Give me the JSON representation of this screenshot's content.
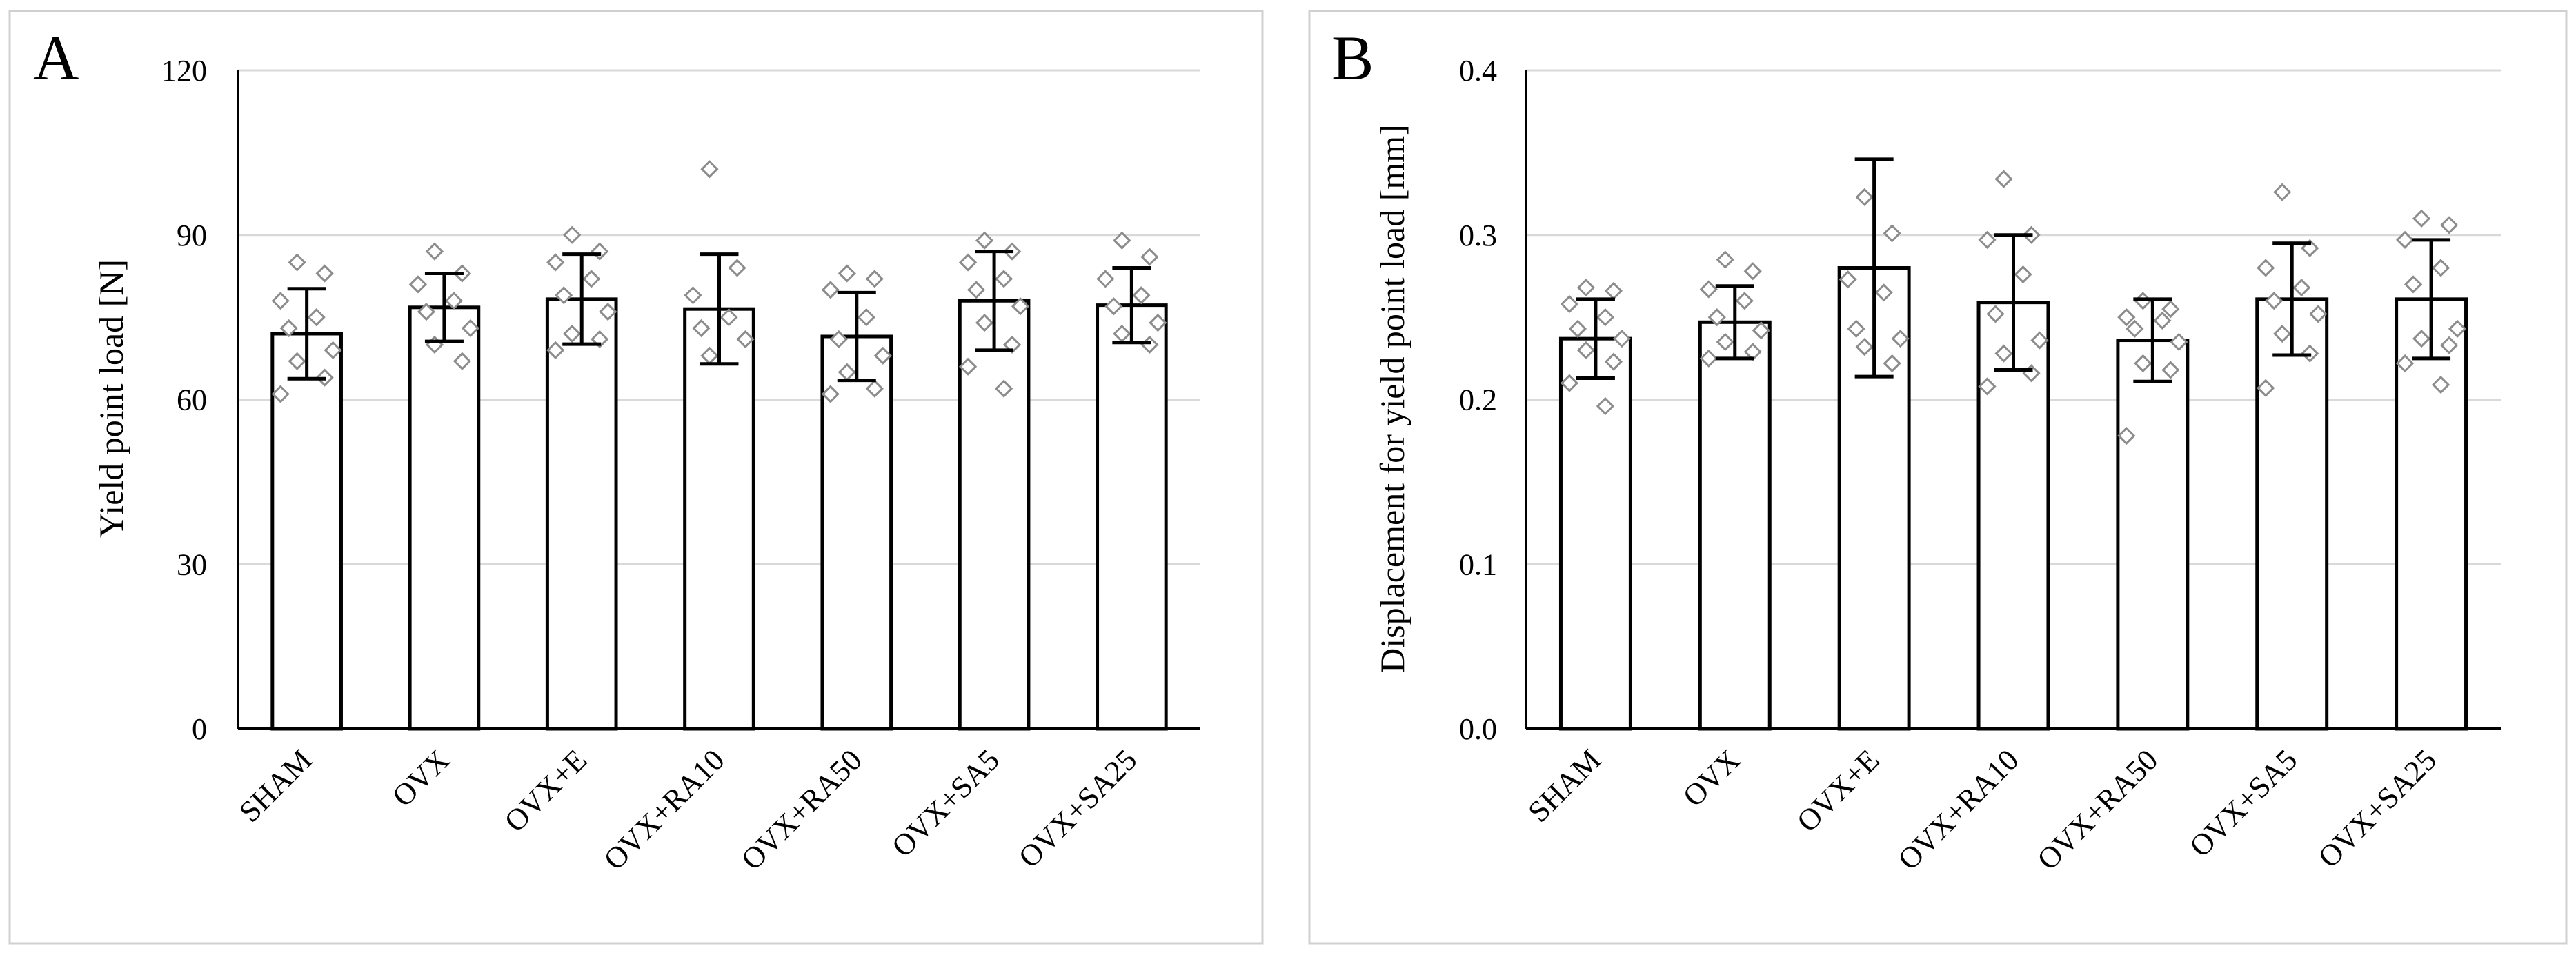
{
  "chart_data": [
    {
      "type": "bar",
      "panel_label": "A",
      "title": "",
      "xlabel": "",
      "ylabel": "Yield point load [N]",
      "ylim": [
        0,
        120
      ],
      "yticks": [
        0,
        30,
        60,
        90,
        120
      ],
      "ytick_labels": [
        "0",
        "30",
        "60",
        "90",
        "120"
      ],
      "grid": true,
      "categories": [
        "SHAM",
        "OVX",
        "OVX+E",
        "OVX+RA10",
        "OVX+RA50",
        "OVX+SA5",
        "OVX+SA25"
      ],
      "values": [
        72,
        76.8,
        78.3,
        76.5,
        71.5,
        78,
        77.2
      ],
      "errors": [
        8.2,
        6.2,
        8.2,
        10,
        8,
        9,
        6.8
      ],
      "points": [
        [
          85,
          83,
          78,
          75,
          73,
          69,
          67,
          64,
          61
        ],
        [
          87,
          83,
          81,
          78,
          76,
          73,
          70,
          67
        ],
        [
          90,
          87,
          85,
          82,
          79,
          76,
          72,
          71,
          69
        ],
        [
          102,
          84,
          79,
          75,
          73,
          71,
          68
        ],
        [
          83,
          82,
          80,
          75,
          71,
          68,
          65,
          62,
          61
        ],
        [
          89,
          87,
          85,
          82,
          80,
          77,
          74,
          70,
          66,
          62
        ],
        [
          89,
          86,
          82,
          79,
          77,
          74,
          72,
          70
        ]
      ]
    },
    {
      "type": "bar",
      "panel_label": "B",
      "title": "",
      "xlabel": "",
      "ylabel": "Displacement for yield point load [mm]",
      "ylim": [
        0,
        0.4
      ],
      "yticks": [
        0,
        0.1,
        0.2,
        0.3,
        0.4
      ],
      "ytick_labels": [
        "0.0",
        "0.1",
        "0.2",
        "0.3",
        "0.4"
      ],
      "grid": true,
      "categories": [
        "SHAM",
        "OVX",
        "OVX+E",
        "OVX+RA10",
        "OVX+RA50",
        "OVX+SA5",
        "OVX+SA25"
      ],
      "values": [
        0.237,
        0.247,
        0.28,
        0.259,
        0.236,
        0.261,
        0.261
      ],
      "errors": [
        0.024,
        0.022,
        0.066,
        0.041,
        0.025,
        0.034,
        0.036
      ],
      "points": [
        [
          0.268,
          0.266,
          0.258,
          0.25,
          0.243,
          0.237,
          0.23,
          0.223,
          0.21,
          0.196
        ],
        [
          0.285,
          0.278,
          0.267,
          0.26,
          0.25,
          0.242,
          0.235,
          0.229,
          0.225
        ],
        [
          0.323,
          0.301,
          0.273,
          0.265,
          0.243,
          0.237,
          0.232,
          0.222
        ],
        [
          0.334,
          0.3,
          0.297,
          0.276,
          0.252,
          0.236,
          0.228,
          0.216,
          0.208
        ],
        [
          0.26,
          0.255,
          0.25,
          0.248,
          0.243,
          0.235,
          0.222,
          0.218,
          0.178
        ],
        [
          0.326,
          0.292,
          0.28,
          0.268,
          0.26,
          0.252,
          0.24,
          0.228,
          0.207
        ],
        [
          0.31,
          0.306,
          0.297,
          0.28,
          0.27,
          0.243,
          0.237,
          0.233,
          0.222,
          0.209
        ]
      ]
    }
  ]
}
